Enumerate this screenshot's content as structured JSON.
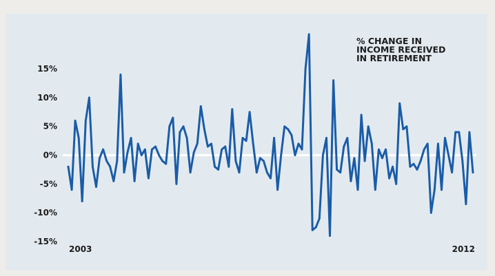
{
  "chart_data": {
    "type": "line",
    "title": "% CHANGE IN INCOME RECEIVED IN RETIREMENT",
    "title_lines": [
      "% CHANGE IN",
      "INCOME RECEIVED",
      "IN RETIREMENT"
    ],
    "xlabel": "",
    "ylabel": "",
    "x_start_label": "2003",
    "x_end_label": "2012",
    "ylim": [
      -15,
      15
    ],
    "y_ticks": [
      15,
      10,
      5,
      0,
      -5,
      -10,
      -15
    ],
    "y_tick_labels": [
      "15%",
      "10%",
      "5%",
      "0%",
      "-5%",
      "-10%",
      "-15%"
    ],
    "grid": false,
    "zero_line": true,
    "line_color": "#1a5ca8",
    "zero_line_color": "#ffffff",
    "background_color": "#e3eaef",
    "series": [
      {
        "values": [
          -2,
          -6,
          6,
          3,
          -8,
          6,
          10,
          -2,
          -5.5,
          -0.5,
          1,
          -1,
          -2,
          -4.5,
          -1,
          14,
          -3,
          0.5,
          3,
          -4.5,
          2,
          0,
          1,
          -4,
          1,
          1.5,
          0,
          -1,
          -1.5,
          5,
          6.5,
          -5,
          4,
          5,
          3,
          -3,
          0.5,
          2,
          8.5,
          4.5,
          1.5,
          2,
          -2,
          -2.5,
          1,
          1.5,
          -2,
          8,
          -1,
          -3,
          3,
          2.5,
          7.5,
          2,
          -3,
          -0.5,
          -1,
          -3,
          -4,
          3,
          -6,
          0,
          5,
          4.5,
          3.5,
          0,
          2,
          1,
          15,
          21,
          -13,
          -12.5,
          -11,
          0,
          3,
          -14,
          13,
          -2.5,
          -3,
          1.5,
          3,
          -4.5,
          -0.5,
          -6,
          7,
          -1,
          5,
          2,
          -6,
          1,
          -0.5,
          1,
          -4,
          -2,
          -5,
          9,
          4.5,
          5,
          -2,
          -1.5,
          -2.5,
          -1,
          1,
          2,
          -10,
          -6,
          2,
          -6,
          3,
          0,
          -3,
          4,
          4,
          -1,
          -8.5,
          4,
          -3
        ]
      }
    ]
  }
}
